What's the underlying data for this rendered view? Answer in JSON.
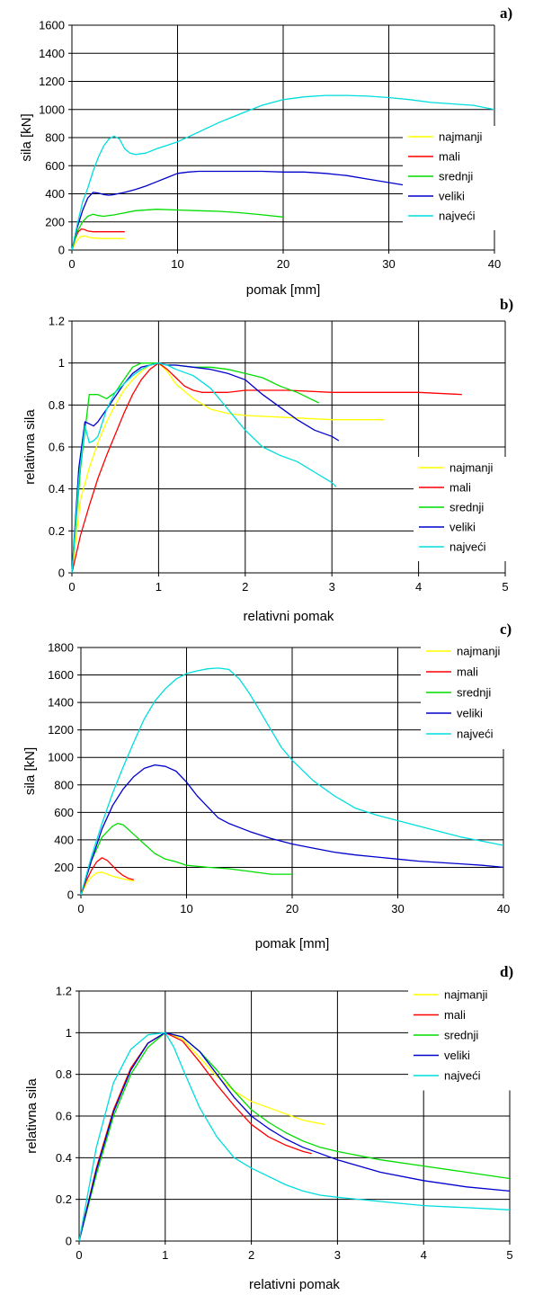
{
  "chart_data": [
    {
      "panel": "a)",
      "type": "line",
      "xlabel": "pomak [mm]",
      "ylabel": "sila [kN]",
      "xlim": [
        0,
        40
      ],
      "ylim": [
        0,
        1600
      ],
      "xticks": [
        0,
        10,
        20,
        30,
        40
      ],
      "yticks": [
        0,
        200,
        400,
        600,
        800,
        1000,
        1200,
        1400,
        1600
      ],
      "grid": "both",
      "legend": "right-bottom",
      "series": [
        {
          "name": "najmanji",
          "color": "#ffff00",
          "x": [
            0,
            0.4,
            0.8,
            1.2,
            1.6,
            2,
            3,
            4,
            5
          ],
          "y": [
            0,
            60,
            95,
            100,
            90,
            85,
            82,
            82,
            82
          ]
        },
        {
          "name": "mali",
          "color": "#ff0000",
          "x": [
            0,
            0.3,
            0.6,
            0.9,
            1.2,
            1.5,
            2,
            3,
            4,
            5
          ],
          "y": [
            0,
            80,
            130,
            150,
            145,
            135,
            130,
            130,
            130,
            130
          ]
        },
        {
          "name": "srednji",
          "color": "#00dd00",
          "x": [
            0,
            0.5,
            1,
            1.5,
            2,
            2.5,
            3,
            4,
            5,
            6,
            8,
            10,
            12,
            14,
            16,
            18,
            20
          ],
          "y": [
            0,
            130,
            200,
            240,
            255,
            245,
            240,
            250,
            265,
            280,
            290,
            285,
            280,
            275,
            265,
            250,
            235
          ]
        },
        {
          "name": "veliki",
          "color": "#0000cc",
          "x": [
            0,
            0.5,
            1,
            1.5,
            2,
            2.5,
            3,
            3.5,
            4,
            5,
            6,
            7,
            8,
            9,
            10,
            11,
            12,
            14,
            16,
            18,
            20,
            22,
            24,
            26,
            28,
            30,
            32
          ],
          "y": [
            0,
            160,
            280,
            370,
            410,
            405,
            395,
            390,
            395,
            410,
            430,
            455,
            485,
            515,
            545,
            555,
            560,
            560,
            560,
            560,
            555,
            555,
            545,
            530,
            505,
            480,
            455
          ]
        },
        {
          "name": "najveći",
          "color": "#00dddd",
          "x": [
            0,
            0.5,
            1,
            1.5,
            2,
            2.5,
            3,
            3.5,
            4,
            4.5,
            5,
            5.5,
            6,
            7,
            8,
            9,
            10,
            12,
            14,
            16,
            18,
            20,
            22,
            24,
            26,
            28,
            30,
            32,
            34,
            36,
            38,
            40
          ],
          "y": [
            0,
            180,
            340,
            440,
            560,
            660,
            740,
            790,
            810,
            790,
            720,
            690,
            680,
            690,
            720,
            745,
            770,
            840,
            910,
            970,
            1030,
            1070,
            1090,
            1100,
            1100,
            1095,
            1085,
            1070,
            1050,
            1040,
            1030,
            1000
          ]
        }
      ]
    },
    {
      "panel": "b)",
      "type": "line",
      "xlabel": "relativni pomak",
      "ylabel": "relativna sila",
      "xlim": [
        0,
        5
      ],
      "ylim": [
        0,
        1.2
      ],
      "xticks": [
        0,
        1,
        2,
        3,
        4,
        5
      ],
      "yticks": [
        0,
        0.2,
        0.4,
        0.6,
        0.8,
        1,
        1.2
      ],
      "ytick_labels": [
        "0",
        "0.2",
        "0.4",
        "0.6",
        "0.8",
        "1",
        "1.2"
      ],
      "grid": "both",
      "legend": "right-bottom",
      "series": [
        {
          "name": "najmanji",
          "color": "#ffff00",
          "x": [
            0,
            0.1,
            0.2,
            0.3,
            0.4,
            0.5,
            0.6,
            0.7,
            0.8,
            0.9,
            1,
            1.1,
            1.2,
            1.4,
            1.6,
            1.8,
            2,
            2.5,
            3,
            3.3,
            3.6
          ],
          "y": [
            0,
            0.35,
            0.5,
            0.62,
            0.72,
            0.8,
            0.87,
            0.92,
            0.96,
            0.99,
            1,
            0.96,
            0.9,
            0.83,
            0.78,
            0.76,
            0.75,
            0.74,
            0.73,
            0.73,
            0.73
          ]
        },
        {
          "name": "mali",
          "color": "#ff0000",
          "x": [
            0,
            0.1,
            0.2,
            0.3,
            0.4,
            0.5,
            0.6,
            0.7,
            0.8,
            0.9,
            1,
            1.1,
            1.2,
            1.3,
            1.4,
            1.5,
            1.6,
            1.8,
            2,
            2.2,
            2.5,
            3,
            3.5,
            4,
            4.5
          ],
          "y": [
            0,
            0.18,
            0.32,
            0.45,
            0.56,
            0.66,
            0.76,
            0.85,
            0.92,
            0.97,
            1,
            0.97,
            0.93,
            0.89,
            0.87,
            0.86,
            0.86,
            0.86,
            0.87,
            0.87,
            0.87,
            0.86,
            0.86,
            0.86,
            0.85
          ]
        },
        {
          "name": "srednji",
          "color": "#00dd00",
          "x": [
            0,
            0.1,
            0.2,
            0.3,
            0.4,
            0.5,
            0.6,
            0.7,
            0.8,
            0.9,
            1,
            1.1,
            1.2,
            1.4,
            1.6,
            1.8,
            2,
            2.2,
            2.4,
            2.6,
            2.8,
            2.85
          ],
          "y": [
            0,
            0.5,
            0.85,
            0.85,
            0.83,
            0.86,
            0.92,
            0.98,
            1,
            1,
            1,
            0.99,
            0.99,
            0.98,
            0.98,
            0.97,
            0.95,
            0.93,
            0.89,
            0.86,
            0.82,
            0.81
          ]
        },
        {
          "name": "veliki",
          "color": "#0000cc",
          "x": [
            0,
            0.08,
            0.15,
            0.2,
            0.25,
            0.3,
            0.4,
            0.5,
            0.6,
            0.7,
            0.8,
            0.9,
            1,
            1.1,
            1.2,
            1.4,
            1.6,
            1.8,
            2,
            2.2,
            2.4,
            2.6,
            2.8,
            3,
            3.08
          ],
          "y": [
            0,
            0.5,
            0.72,
            0.71,
            0.7,
            0.72,
            0.78,
            0.84,
            0.9,
            0.95,
            0.98,
            0.99,
            1,
            0.99,
            0.99,
            0.98,
            0.97,
            0.95,
            0.92,
            0.85,
            0.79,
            0.73,
            0.68,
            0.65,
            0.63
          ]
        },
        {
          "name": "najveći",
          "color": "#00dddd",
          "x": [
            0,
            0.08,
            0.15,
            0.2,
            0.25,
            0.3,
            0.4,
            0.5,
            0.6,
            0.7,
            0.8,
            0.9,
            1,
            1.1,
            1.2,
            1.4,
            1.6,
            1.8,
            2,
            2.2,
            2.4,
            2.6,
            2.8,
            3,
            3.05
          ],
          "y": [
            0,
            0.45,
            0.7,
            0.62,
            0.63,
            0.65,
            0.78,
            0.86,
            0.9,
            0.94,
            0.97,
            0.99,
            1,
            0.99,
            0.97,
            0.94,
            0.88,
            0.78,
            0.68,
            0.6,
            0.56,
            0.53,
            0.48,
            0.43,
            0.41
          ]
        }
      ]
    },
    {
      "panel": "c)",
      "type": "line",
      "xlabel": "pomak [mm]",
      "ylabel": "sila [kN]",
      "xlim": [
        0,
        40
      ],
      "ylim": [
        0,
        1800
      ],
      "xticks": [
        0,
        10,
        20,
        30,
        40
      ],
      "yticks": [
        0,
        200,
        400,
        600,
        800,
        1000,
        1200,
        1400,
        1600,
        1800
      ],
      "grid": "both",
      "legend": "right-top",
      "series": [
        {
          "name": "najmanji",
          "color": "#ffff00",
          "x": [
            0,
            0.5,
            1,
            1.5,
            2,
            2.5,
            3,
            4,
            5
          ],
          "y": [
            0,
            80,
            130,
            160,
            165,
            150,
            135,
            115,
            100
          ]
        },
        {
          "name": "mali",
          "color": "#ff0000",
          "x": [
            0,
            0.5,
            1,
            1.5,
            2,
            2.5,
            3,
            3.5,
            4,
            4.5,
            5
          ],
          "y": [
            0,
            100,
            180,
            240,
            270,
            250,
            210,
            170,
            140,
            120,
            110
          ]
        },
        {
          "name": "srednji",
          "color": "#00dd00",
          "x": [
            0,
            1,
            2,
            3,
            3.5,
            4,
            5,
            6,
            7,
            8,
            9,
            10,
            12,
            14,
            16,
            18,
            20
          ],
          "y": [
            0,
            250,
            420,
            500,
            520,
            510,
            440,
            370,
            300,
            260,
            240,
            215,
            200,
            190,
            170,
            150,
            150
          ]
        },
        {
          "name": "veliki",
          "color": "#0000cc",
          "x": [
            0,
            1,
            2,
            3,
            4,
            5,
            6,
            7,
            8,
            9,
            10,
            11,
            12,
            13,
            14,
            16,
            18,
            20,
            22,
            24,
            26,
            28,
            30,
            32,
            34,
            36,
            38,
            40
          ],
          "y": [
            0,
            250,
            480,
            650,
            770,
            860,
            920,
            945,
            935,
            900,
            820,
            720,
            640,
            560,
            520,
            460,
            410,
            370,
            340,
            310,
            290,
            275,
            260,
            245,
            235,
            225,
            215,
            200
          ]
        },
        {
          "name": "najveći",
          "color": "#00dddd",
          "x": [
            0,
            1,
            2,
            3,
            4,
            5,
            6,
            7,
            8,
            9,
            10,
            11,
            12,
            13,
            14,
            15,
            16,
            17,
            18,
            19,
            20,
            22,
            24,
            26,
            28,
            30,
            32,
            34,
            36,
            38,
            40
          ],
          "y": [
            0,
            280,
            520,
            740,
            930,
            1110,
            1280,
            1410,
            1500,
            1570,
            1610,
            1630,
            1645,
            1650,
            1640,
            1570,
            1460,
            1330,
            1200,
            1070,
            980,
            830,
            720,
            630,
            580,
            540,
            500,
            460,
            420,
            390,
            360
          ]
        }
      ]
    },
    {
      "panel": "d)",
      "type": "line",
      "xlabel": "relativni pomak",
      "ylabel": "relativna sila",
      "xlim": [
        0,
        5
      ],
      "ylim": [
        0,
        1.2
      ],
      "xticks": [
        0,
        1,
        2,
        3,
        4,
        5
      ],
      "yticks": [
        0,
        0.2,
        0.4,
        0.6,
        0.8,
        1,
        1.2
      ],
      "ytick_labels": [
        "0",
        "0.2",
        "0.4",
        "0.6",
        "0.8",
        "1",
        "1.2"
      ],
      "grid": "both",
      "legend": "right-top",
      "series": [
        {
          "name": "najmanji",
          "color": "#ffff00",
          "x": [
            0,
            0.2,
            0.4,
            0.6,
            0.8,
            1,
            1.2,
            1.4,
            1.6,
            1.8,
            2,
            2.2,
            2.4,
            2.6,
            2.85
          ],
          "y": [
            0,
            0.35,
            0.63,
            0.83,
            0.95,
            1,
            0.97,
            0.88,
            0.79,
            0.72,
            0.67,
            0.64,
            0.61,
            0.58,
            0.56
          ]
        },
        {
          "name": "mali",
          "color": "#ff0000",
          "x": [
            0,
            0.2,
            0.4,
            0.6,
            0.8,
            1,
            1.2,
            1.4,
            1.6,
            1.8,
            2,
            2.2,
            2.4,
            2.6,
            2.7
          ],
          "y": [
            0,
            0.35,
            0.63,
            0.83,
            0.95,
            1,
            0.96,
            0.86,
            0.75,
            0.65,
            0.56,
            0.5,
            0.46,
            0.43,
            0.42
          ]
        },
        {
          "name": "srednji",
          "color": "#00dd00",
          "x": [
            0,
            0.2,
            0.4,
            0.6,
            0.8,
            1,
            1.2,
            1.4,
            1.6,
            1.8,
            2,
            2.2,
            2.4,
            2.6,
            2.8,
            3,
            3.5,
            4,
            4.5,
            5
          ],
          "y": [
            0,
            0.32,
            0.6,
            0.8,
            0.93,
            1,
            0.98,
            0.91,
            0.82,
            0.72,
            0.63,
            0.57,
            0.52,
            0.48,
            0.45,
            0.43,
            0.39,
            0.36,
            0.33,
            0.3
          ]
        },
        {
          "name": "veliki",
          "color": "#0000cc",
          "x": [
            0,
            0.2,
            0.4,
            0.6,
            0.8,
            1,
            1.2,
            1.4,
            1.6,
            1.8,
            2,
            2.2,
            2.4,
            2.6,
            2.8,
            3,
            3.5,
            4,
            4.5,
            5
          ],
          "y": [
            0,
            0.34,
            0.62,
            0.82,
            0.95,
            1,
            0.98,
            0.91,
            0.8,
            0.69,
            0.6,
            0.54,
            0.49,
            0.45,
            0.42,
            0.39,
            0.33,
            0.29,
            0.26,
            0.24
          ]
        },
        {
          "name": "najveći",
          "color": "#00dddd",
          "x": [
            0,
            0.2,
            0.4,
            0.6,
            0.8,
            1,
            1.1,
            1.2,
            1.4,
            1.6,
            1.8,
            2,
            2.2,
            2.4,
            2.6,
            2.8,
            3,
            3.5,
            4,
            4.5,
            5
          ],
          "y": [
            0,
            0.45,
            0.76,
            0.92,
            0.99,
            1,
            0.93,
            0.83,
            0.64,
            0.5,
            0.4,
            0.35,
            0.31,
            0.27,
            0.24,
            0.22,
            0.21,
            0.19,
            0.17,
            0.16,
            0.15
          ]
        }
      ]
    }
  ]
}
